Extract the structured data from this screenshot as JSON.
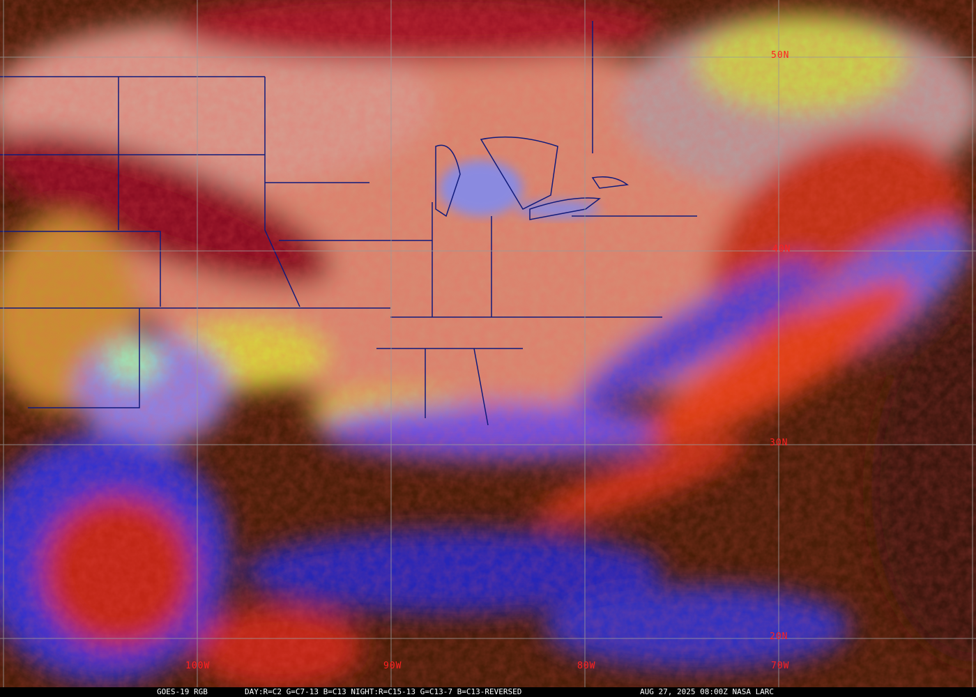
{
  "map": {
    "lat_labels": [
      "50N",
      "40N",
      "30N",
      "20N"
    ],
    "lon_labels": [
      "100W",
      "90W",
      "80W",
      "70W"
    ],
    "colors": {
      "grid": "#9a9a9a",
      "label": "#ff2020",
      "borders": "#101a7a",
      "ocean": "#4a1e08",
      "land": "#d98a6e"
    }
  },
  "caption": {
    "product": "GOES-19 RGB",
    "recipe": "DAY:R=C2 G=C7-13 B=C13 NIGHT:R=C15-13 G=C13-7 B=C13-REVERSED",
    "timestamp": "AUG 27, 2025 08:00Z NASA LARC"
  }
}
